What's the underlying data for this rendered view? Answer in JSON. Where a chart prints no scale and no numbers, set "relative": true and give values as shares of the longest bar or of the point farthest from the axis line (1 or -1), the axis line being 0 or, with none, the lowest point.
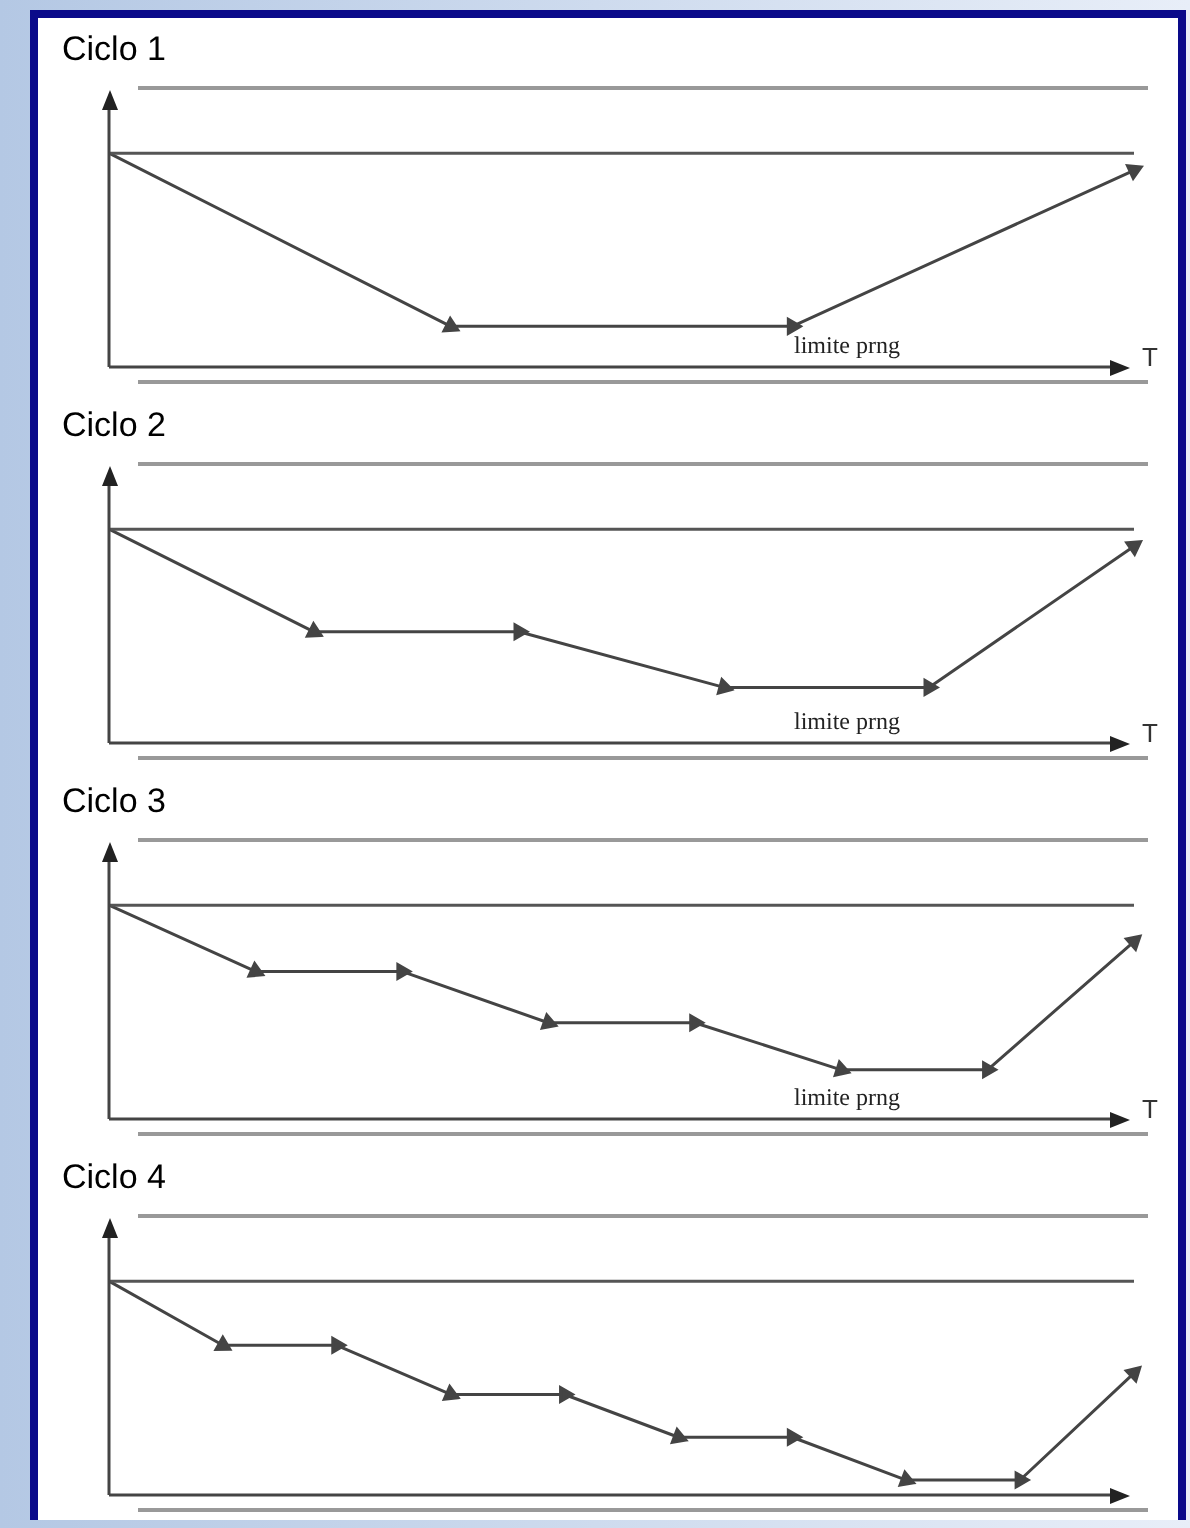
{
  "chart_data": [
    {
      "type": "line",
      "title": "Ciclo 1",
      "xlabel": "T",
      "relative": true,
      "tick_labels": false,
      "marker": "triangle",
      "line_style": "solid",
      "categories": [
        null,
        null,
        null,
        null
      ],
      "series": [
        {
          "color": "#444444",
          "values": [
            1,
            0.19,
            0.19,
            0.92
          ]
        }
      ],
      "ref_lines": [
        {
          "axis": "y",
          "value": 1,
          "color": "#555555"
        }
      ],
      "annotations": [
        "limite prng"
      ]
    },
    {
      "type": "line",
      "title": "Ciclo 2",
      "xlabel": "T",
      "relative": true,
      "tick_labels": false,
      "marker": "triangle",
      "line_style": "solid",
      "categories": [
        null,
        null,
        null,
        null,
        null,
        null
      ],
      "series": [
        {
          "color": "#444444",
          "values": [
            1,
            0.52,
            0.52,
            0.26,
            0.26,
            0.92
          ]
        }
      ],
      "ref_lines": [
        {
          "axis": "y",
          "value": 1,
          "color": "#555555"
        }
      ],
      "annotations": [
        "limite prng"
      ]
    },
    {
      "type": "line",
      "title": "Ciclo 3",
      "xlabel": "T",
      "relative": true,
      "tick_labels": false,
      "marker": "triangle",
      "line_style": "solid",
      "categories": [
        null,
        null,
        null,
        null,
        null,
        null,
        null,
        null
      ],
      "series": [
        {
          "color": "#444444",
          "values": [
            1,
            0.69,
            0.69,
            0.45,
            0.45,
            0.23,
            0.23,
            0.83
          ]
        }
      ],
      "ref_lines": [
        {
          "axis": "y",
          "value": 1,
          "color": "#555555"
        }
      ],
      "annotations": [
        "limite prng"
      ]
    },
    {
      "type": "line",
      "title": "Ciclo 4",
      "relative": true,
      "tick_labels": false,
      "marker": "triangle",
      "line_style": "solid",
      "categories": [
        null,
        null,
        null,
        null,
        null,
        null,
        null,
        null,
        null,
        null
      ],
      "series": [
        {
          "color": "#444444",
          "values": [
            1,
            0.7,
            0.7,
            0.47,
            0.47,
            0.27,
            0.27,
            0.07,
            0.07,
            0.57
          ]
        }
      ],
      "ref_lines": [
        {
          "axis": "y",
          "value": 1,
          "color": "#555555"
        }
      ]
    }
  ]
}
